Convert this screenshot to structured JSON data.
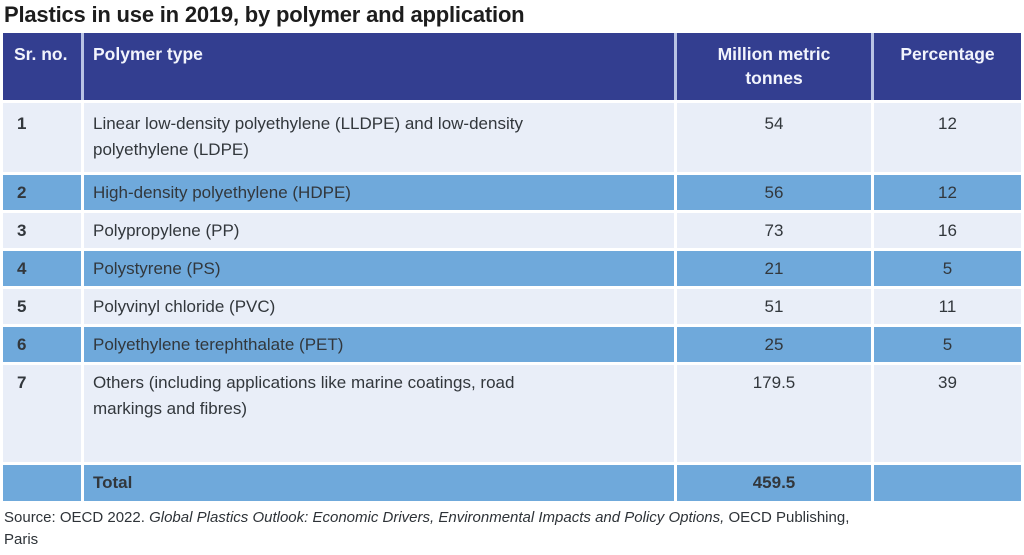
{
  "page": {
    "title": "Plastics in use in 2019, by polymer and application",
    "source": {
      "prefix": "Source: OECD 2022. ",
      "italic": "Global Plastics Outlook: Economic Drivers, Environmental Impacts and Policy Options,",
      "suffix": " OECD Publishing, Paris"
    }
  },
  "colors": {
    "header_bg": "#333e90",
    "header_text": "#f2f4fc",
    "header_divider": "#b9c3e4",
    "row_light": "#e9eef8",
    "row_medium": "#6fa9db",
    "body_text": "#32373c",
    "title_text": "#1d1d1d"
  },
  "chart_data": {
    "type": "table",
    "title": "Plastics in use in 2019, by polymer and application",
    "columns": [
      "Sr. no.",
      "Polymer type",
      "Million metric tonnes",
      "Percentage"
    ],
    "rows": [
      [
        "1",
        "Linear low-density polyethylene (LLDPE) and low-density polyethylene (LDPE)",
        "54",
        "12"
      ],
      [
        "2",
        "High-density polyethylene (HDPE)",
        "56",
        "12"
      ],
      [
        "3",
        "Polypropylene (PP)",
        "73",
        "16"
      ],
      [
        "4",
        "Polystyrene (PS)",
        "21",
        "5"
      ],
      [
        "5",
        "Polyvinyl chloride (PVC)",
        "51",
        "11"
      ],
      [
        "6",
        "Polyethylene terephthalate (PET)",
        "25",
        "5"
      ],
      [
        "7",
        "Others (including applications like marine coatings, road markings and fibres)",
        "179.5",
        "39"
      ]
    ],
    "total": {
      "label": "Total",
      "million_metric_tonnes": "459.5"
    }
  }
}
